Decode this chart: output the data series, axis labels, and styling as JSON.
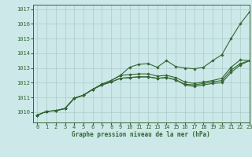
{
  "title": "Graphe pression niveau de la mer (hPa)",
  "bg_color": "#cce8e8",
  "grid_color": "#aacccc",
  "line_color": "#336633",
  "xlim": [
    -0.5,
    23
  ],
  "ylim": [
    1009.3,
    1017.3
  ],
  "xticks": [
    0,
    1,
    2,
    3,
    4,
    5,
    6,
    7,
    8,
    9,
    10,
    11,
    12,
    13,
    14,
    15,
    16,
    17,
    18,
    19,
    20,
    21,
    22,
    23
  ],
  "yticks": [
    1010,
    1011,
    1012,
    1013,
    1014,
    1015,
    1016,
    1017
  ],
  "series": [
    [
      1009.8,
      1010.05,
      1010.1,
      1010.25,
      1010.95,
      1011.15,
      1011.55,
      1011.9,
      1012.15,
      1012.5,
      1013.05,
      1013.25,
      1013.3,
      1013.05,
      1013.5,
      1013.1,
      1013.0,
      1012.95,
      1013.05,
      1013.5,
      1013.9,
      1015.0,
      1016.0,
      1016.8
    ],
    [
      1009.8,
      1010.05,
      1010.1,
      1010.25,
      1010.95,
      1011.15,
      1011.55,
      1011.9,
      1012.15,
      1012.5,
      1012.55,
      1012.6,
      1012.6,
      1012.45,
      1012.5,
      1012.35,
      1012.05,
      1011.95,
      1012.05,
      1012.15,
      1012.3,
      1013.05,
      1013.55,
      1013.5
    ],
    [
      1009.8,
      1010.05,
      1010.1,
      1010.25,
      1010.95,
      1011.15,
      1011.55,
      1011.85,
      1012.05,
      1012.3,
      1012.35,
      1012.4,
      1012.4,
      1012.3,
      1012.35,
      1012.2,
      1011.9,
      1011.85,
      1011.95,
      1012.05,
      1012.15,
      1012.85,
      1013.3,
      1013.5
    ],
    [
      1009.8,
      1010.05,
      1010.1,
      1010.25,
      1010.95,
      1011.15,
      1011.55,
      1011.85,
      1012.05,
      1012.3,
      1012.35,
      1012.4,
      1012.4,
      1012.3,
      1012.35,
      1012.2,
      1011.85,
      1011.75,
      1011.85,
      1011.95,
      1012.0,
      1012.7,
      1013.2,
      1013.5
    ]
  ]
}
